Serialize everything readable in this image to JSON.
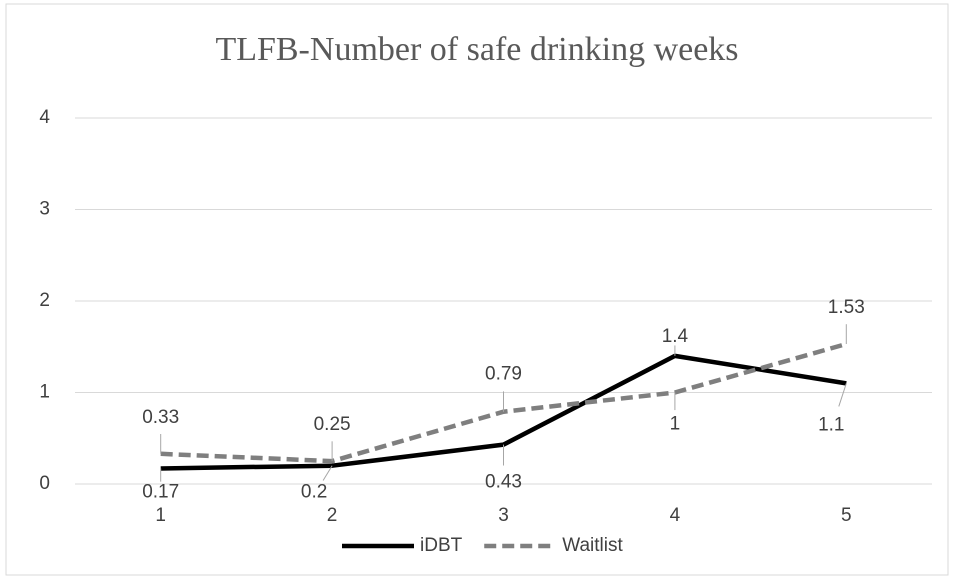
{
  "chart_data": {
    "type": "line",
    "title": "TLFB-Number of safe drinking weeks",
    "categories": [
      "1",
      "2",
      "3",
      "4",
      "5"
    ],
    "series": [
      {
        "name": "iDBT",
        "color": "#000000",
        "dashed": false,
        "values": [
          0.17,
          0.2,
          0.43,
          1.4,
          1.1
        ]
      },
      {
        "name": "Waitlist",
        "color": "#7f7f7f",
        "dashed": true,
        "values": [
          0.33,
          0.25,
          0.79,
          1,
          1.53
        ]
      }
    ],
    "ylim": [
      0,
      4
    ],
    "yticks": [
      0,
      1,
      2,
      3,
      4
    ],
    "grid": true,
    "legend": "bottom"
  }
}
